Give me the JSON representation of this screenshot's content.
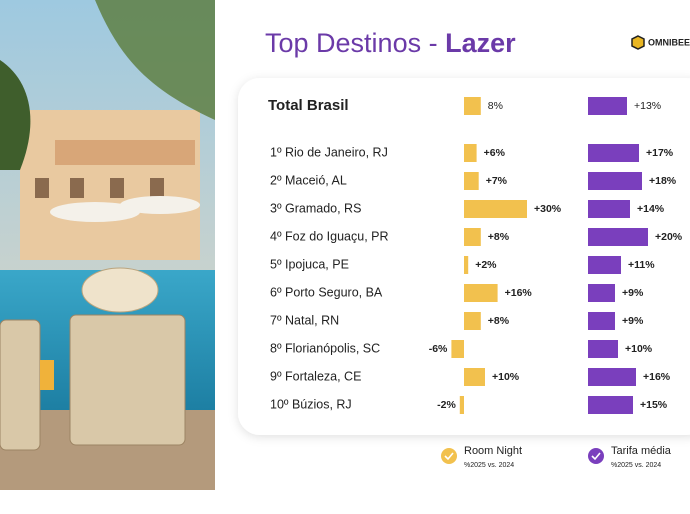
{
  "chart_data": {
    "type": "bar",
    "title": "Top Destinos -",
    "title_highlight": "Lazer",
    "logo": "OMNIBEE",
    "categories": [
      "Total Brasil",
      "1º Rio de Janeiro, RJ",
      "2º Maceió, AL",
      "3º Gramado, RS",
      "4º Foz do Iguaçu, PR",
      "5º Ipojuca, PE",
      "6º Porto Seguro, BA",
      "7º Natal, RN",
      "8º Florianópolis, SC",
      "9º Fortaleza, CE",
      "10º Búzios, RJ"
    ],
    "series": [
      {
        "name": "Room Night",
        "note": "%2025 vs. 2024",
        "color": "#f2c14e",
        "values": [
          8,
          6,
          7,
          30,
          8,
          2,
          16,
          8,
          -6,
          10,
          -2
        ],
        "value_labels": [
          "8%",
          "+6%",
          "+7%",
          "+30%",
          "+8%",
          "+2%",
          "+16%",
          "+8%",
          "-6%",
          "+10%",
          "-2%"
        ]
      },
      {
        "name": "Tarifa média",
        "note": "%2025 vs. 2024",
        "color": "#7a3fbd",
        "values": [
          13,
          17,
          18,
          14,
          20,
          11,
          9,
          9,
          10,
          16,
          15
        ],
        "value_labels": [
          "+13%",
          "+17%",
          "+18%",
          "+14%",
          "+20%",
          "+11%",
          "+9%",
          "+9%",
          "+10%",
          "+16%",
          "+15%"
        ]
      }
    ]
  }
}
